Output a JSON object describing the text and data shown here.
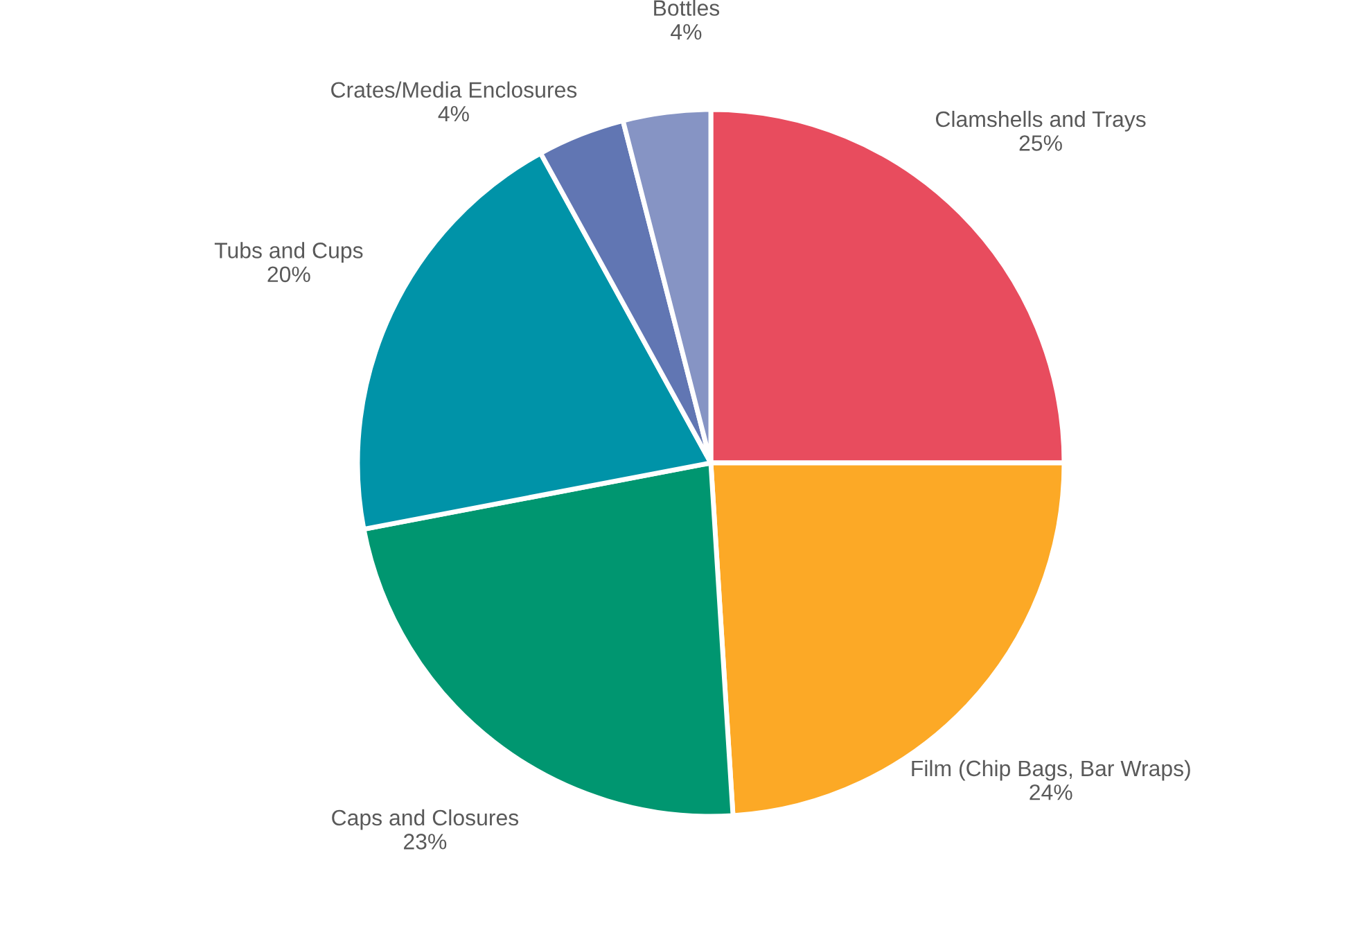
{
  "chart_data": {
    "type": "pie",
    "categories": [
      "Clamshells and Trays",
      "Film (Chip Bags, Bar Wraps)",
      "Caps and Closures",
      "Tubs and Cups",
      "Crates/Media Enclosures",
      "Bottles"
    ],
    "values": [
      25,
      24,
      23,
      20,
      4,
      4
    ],
    "colors": [
      "#e84c5e",
      "#fca926",
      "#009670",
      "#0093a8",
      "#6176b3",
      "#8694c4"
    ],
    "value_labels": [
      "25%",
      "24%",
      "23%",
      "20%",
      "4%",
      "4%"
    ]
  }
}
